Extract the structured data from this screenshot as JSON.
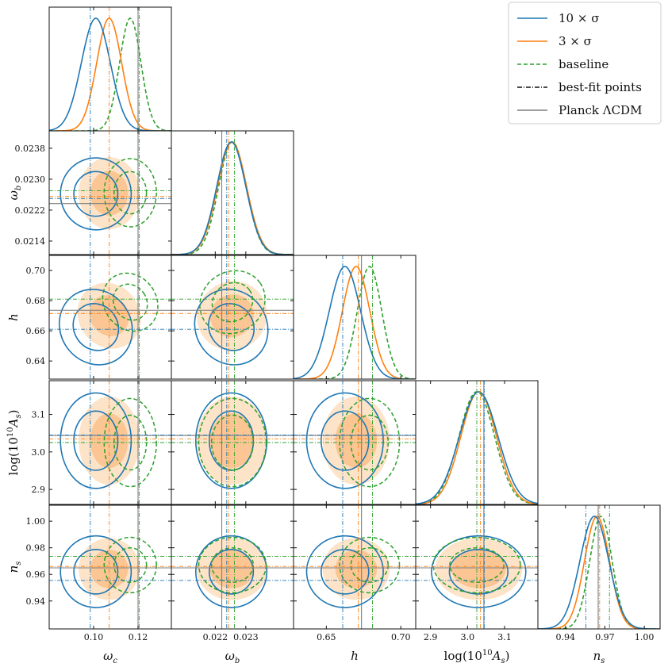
{
  "chart_data": {
    "type": "corner",
    "title": "",
    "parameters": [
      {
        "key": "omega_c",
        "label_main": "ω",
        "label_sub": "c",
        "range": [
          0.08,
          0.135
        ],
        "ticks": [
          0.1,
          0.12
        ],
        "tick_labels": [
          "0.10",
          "0.12"
        ]
      },
      {
        "key": "omega_b",
        "label_main": "ω",
        "label_sub": "b",
        "range": [
          0.02105,
          0.02425
        ],
        "ticks": [
          0.0214,
          0.0222,
          0.023,
          0.0238
        ],
        "tick_labels": [
          "0.0214",
          "0.0222",
          "0.0230",
          "0.0238"
        ],
        "xticks": [
          0.0222,
          0.023
        ],
        "xtick_labels": [
          "0.022",
          "0.023"
        ]
      },
      {
        "key": "h",
        "label_main": "h",
        "label_sub": "",
        "range": [
          0.628,
          0.71
        ],
        "ticks": [
          0.64,
          0.66,
          0.68,
          0.7
        ],
        "tick_labels": [
          "0.64",
          "0.66",
          "0.68",
          "0.70"
        ],
        "xticks": [
          0.65,
          0.7
        ],
        "xtick_labels": [
          "0.65",
          "0.70"
        ]
      },
      {
        "key": "logAs",
        "label_main": "log(10",
        "label_sup": "10",
        "label_tail": "A",
        "label_sub": "s",
        "label_close": ")",
        "range": [
          2.86,
          3.19
        ],
        "ticks": [
          2.9,
          3.0,
          3.1
        ],
        "tick_labels": [
          "2.9",
          "3.0",
          "3.1"
        ]
      },
      {
        "key": "ns",
        "label_main": "n",
        "label_sub": "s",
        "range": [
          0.919,
          1.012
        ],
        "ticks": [
          0.94,
          0.96,
          0.98,
          1.0
        ],
        "tick_labels": [
          "0.94",
          "0.96",
          "0.98",
          "1.00"
        ],
        "xticks": [
          0.94,
          0.97,
          1.0
        ],
        "xtick_labels": [
          "0.94",
          "0.97",
          "1.00"
        ]
      }
    ],
    "series": [
      {
        "name": "10 × σ",
        "color": "#1f77b4",
        "style": "solid-contour",
        "means": [
          0.101,
          0.02262,
          0.6625,
          3.03,
          0.962
        ],
        "sigmas": [
          0.0065,
          0.00038,
          0.0105,
          0.052,
          0.011
        ],
        "best_fit": [
          0.0985,
          0.0225,
          0.661,
          3.045,
          0.9555
        ]
      },
      {
        "name": "3 × σ",
        "color": "#ff7f0e",
        "style": "filled",
        "means": [
          0.107,
          0.02264,
          0.67,
          3.03,
          0.964
        ],
        "sigmas": [
          0.0056,
          0.00038,
          0.0092,
          0.048,
          0.0095
        ],
        "best_fit": [
          0.107,
          0.02255,
          0.6715,
          3.035,
          0.966
        ]
      },
      {
        "name": "baseline",
        "color": "#2ca02c",
        "style": "dashed-contour",
        "means": [
          0.1165,
          0.02265,
          0.679,
          3.025,
          0.967
        ],
        "sigmas": [
          0.0048,
          0.00036,
          0.0082,
          0.048,
          0.0085
        ],
        "best_fit": [
          0.1205,
          0.0227,
          0.681,
          3.025,
          0.9735
        ]
      }
    ],
    "reference": {
      "name": "Planck ΛCDM",
      "color": "#7f7f7f",
      "values": [
        0.12,
        0.02237,
        0.6736,
        3.044,
        0.9649
      ]
    },
    "legend": {
      "placement": "top-right",
      "entries": [
        {
          "label": "10 × σ",
          "color": "#1f77b4",
          "dash": "solid"
        },
        {
          "label": "3 × σ",
          "color": "#ff7f0e",
          "dash": "solid"
        },
        {
          "label": "baseline",
          "color": "#2ca02c",
          "dash": "dashed"
        },
        {
          "label": "best-fit points",
          "color": "#111111",
          "dash": "dashdot"
        },
        {
          "label": "Planck ΛCDM",
          "color": "#7f7f7f",
          "dash": "solid"
        }
      ]
    },
    "grid": false
  }
}
